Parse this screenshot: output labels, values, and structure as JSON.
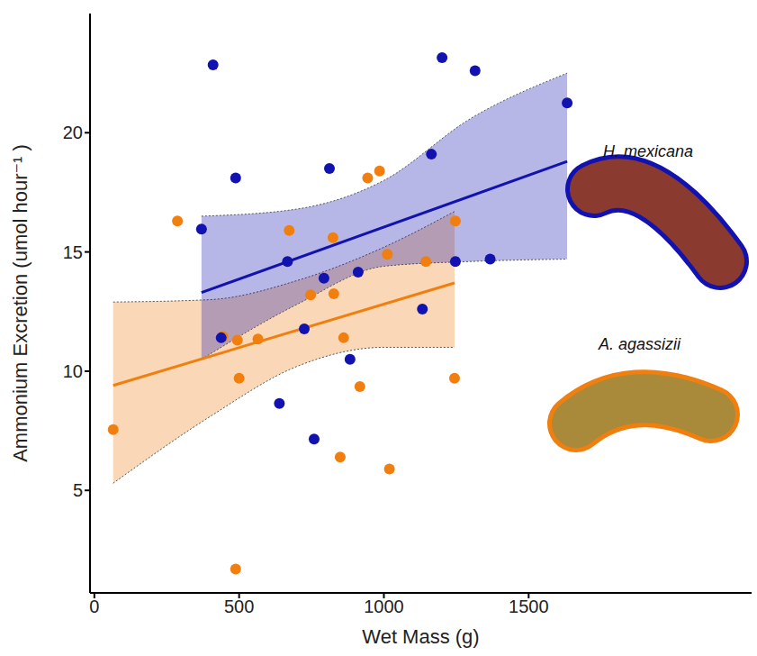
{
  "chart_data": {
    "type": "scatter",
    "x_label": "Wet Mass (g)",
    "y_label": "Ammonium Excretion (umol hour⁻¹ )",
    "xlim": [
      -15,
      2270
    ],
    "xticks": [
      0,
      500,
      1000,
      1500
    ],
    "ylim": [
      0.7,
      25
    ],
    "yticks": [
      5,
      10,
      15,
      20
    ],
    "grid": false,
    "series": [
      {
        "name": "H. mexicana",
        "color": "#1212b0",
        "marker": "circle",
        "x": [
          370,
          410,
          488,
          438,
          667,
          639,
          725,
          759,
          793,
          812,
          883,
          911,
          1201,
          1133,
          1164,
          1315,
          1247,
          1367,
          1633
        ],
        "values": [
          15.96,
          22.85,
          18.1,
          11.4,
          14.6,
          8.65,
          11.77,
          7.15,
          13.9,
          18.5,
          10.5,
          14.15,
          23.15,
          12.6,
          19.1,
          22.6,
          14.6,
          14.7,
          21.25
        ],
        "fit": {
          "x": [
            370,
            1633
          ],
          "values": [
            13.3,
            18.8
          ]
        },
        "band": {
          "x": [
            370,
            700,
            1000,
            1300,
            1633
          ],
          "lower": [
            10.5,
            12.8,
            14.4,
            14.6,
            14.7
          ],
          "upper": [
            16.5,
            16.8,
            18.0,
            20.6,
            22.5
          ]
        }
      },
      {
        "name": "A. agassizii",
        "color": "#f07f10",
        "marker": "circle",
        "x": [
          65,
          287,
          444,
          494,
          500,
          488,
          565,
          673,
          747,
          824,
          827,
          861,
          849,
          917,
          944,
          985,
          1019,
          1012,
          1145,
          1247,
          1244
        ],
        "values": [
          7.55,
          16.3,
          11.45,
          11.3,
          9.7,
          1.7,
          11.35,
          15.9,
          13.2,
          15.6,
          13.25,
          11.4,
          6.4,
          9.35,
          18.1,
          18.4,
          5.9,
          14.9,
          14.6,
          16.3,
          9.7
        ],
        "fit": {
          "x": [
            65,
            1244
          ],
          "values": [
            9.4,
            13.7
          ]
        },
        "band": {
          "x": [
            65,
            400,
            700,
            1000,
            1244
          ],
          "lower": [
            5.3,
            8.1,
            10.2,
            11.0,
            11.0
          ],
          "upper": [
            12.9,
            13.0,
            13.8,
            15.2,
            16.7
          ]
        }
      }
    ]
  }
}
